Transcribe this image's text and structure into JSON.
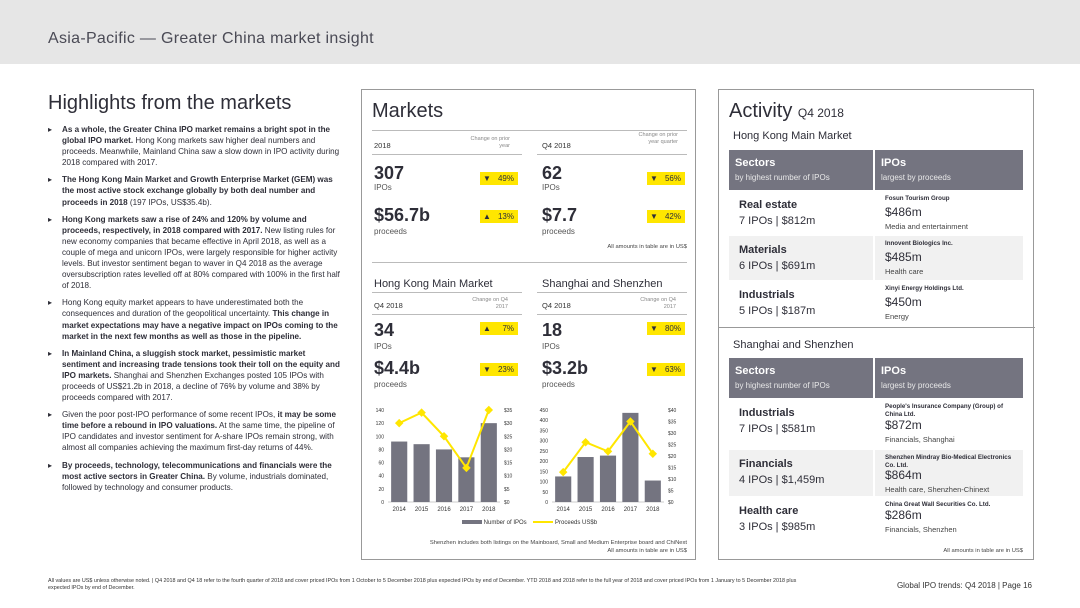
{
  "header": {
    "title": "Asia-Pacific — Greater China market insight"
  },
  "highlights": {
    "title": "Highlights from the markets",
    "bullets": [
      {
        "bold": "As a whole, the Greater China IPO market remains a bright spot in the global IPO market.",
        "text": " Hong Kong markets saw higher deal numbers and proceeds. Meanwhile, Mainland China saw a slow down in IPO activity during 2018 compared with 2017."
      },
      {
        "bold": "The Hong Kong Main Market and Growth Enterprise Market (GEM) was the most active stock exchange globally by both deal number and proceeds in 2018",
        "text": " (197 IPOs, US$35.4b)."
      },
      {
        "bold": "Hong Kong markets saw a rise of 24% and 120% by volume and proceeds, respectively, in 2018 compared with 2017.",
        "text": " New listing rules for new economy companies that became effective in April 2018, as well as a couple of mega and unicorn IPOs, were largely responsible for higher activity levels. But investor sentiment began to waver in Q4 2018 as the average oversubscription rates levelled off at 80% compared with 100% in the first half of 2018."
      },
      {
        "bold": "",
        "text": "Hong Kong equity market appears to have underestimated both the consequences and duration of the geopolitical uncertainty. ",
        "bold2": "This change in market expectations may have a negative impact on IPOs coming to the market in the next few months as well as those in the pipeline."
      },
      {
        "bold": "In Mainland China, a sluggish stock market, pessimistic market sentiment and increasing trade tensions took their toll on the equity and IPO markets.",
        "text": " Shanghai and Shenzhen Exchanges posted 105 IPOs with proceeds of US$21.2b in 2018, a decline of 76% by volume and 38% by proceeds compared with 2017."
      },
      {
        "bold": "",
        "text": "Given the poor post-IPO performance of some recent IPOs, ",
        "bold2": "it may be some time before a rebound in IPO valuations.",
        "text2": " At the same time, the pipeline of IPO candidates and investor sentiment for A-share IPOs remain strong, with almost all companies achieving the maximum first-day returns of 44%."
      },
      {
        "bold": "By proceeds, technology, telecommunications and financials were the most active sectors in Greater China.",
        "text": " By volume, industrials dominated, followed by technology and consumer products."
      }
    ]
  },
  "markets": {
    "title": "Markets",
    "change_label": "Change on prior year",
    "change_label_q": "Change on prior year quarter",
    "change_label_q2017": "Change on Q4 2017",
    "y2018": {
      "label": "2018",
      "ipos": "307",
      "ipos_label": "IPOs",
      "ipos_change": "49%",
      "proceeds": "$56.7b",
      "proceeds_label": "proceeds",
      "proceeds_change": "13%"
    },
    "q2018": {
      "label": "Q4 2018",
      "ipos": "62",
      "ipos_label": "IPOs",
      "ipos_change": "56%",
      "proceeds": "$7.7",
      "proceeds_label": "proceeds",
      "proceeds_change": "42%"
    },
    "amounts_note": "All amounts in table are in US$",
    "hk": {
      "title": "Hong Kong Main Market",
      "label": "Q4 2018",
      "ipos": "34",
      "ipos_label": "IPOs",
      "ipos_change": "7%",
      "proceeds": "$4.4b",
      "proceeds_label": "proceeds",
      "proceeds_change": "23%"
    },
    "ss": {
      "title": "Shanghai and Shenzhen",
      "label": "Q4 2018",
      "ipos": "18",
      "ipos_label": "IPOs",
      "ipos_change": "80%",
      "proceeds": "$3.2b",
      "proceeds_label": "proceeds",
      "proceeds_change": "63%"
    },
    "legend": {
      "bars": "Number of IPOs",
      "line": "Proceeds US$b"
    },
    "chart_note1": "Shenzhen includes both listings on the Mainboard, Small and Medium Enterprise board and ChiNext",
    "chart_note2": "All amounts in table are in US$"
  },
  "chart_data": [
    {
      "type": "bar",
      "title": "Hong Kong Main Market",
      "categories": [
        "2014",
        "2015",
        "2016",
        "2017",
        "2018"
      ],
      "series": [
        {
          "name": "Number of IPOs",
          "values": [
            92,
            88,
            80,
            68,
            120
          ]
        },
        {
          "name": "Proceeds US$b",
          "values": [
            30,
            34,
            25,
            13,
            35
          ]
        }
      ],
      "ylim": [
        0,
        140
      ],
      "y2lim": [
        0,
        35
      ],
      "yticks": [
        0,
        20,
        40,
        60,
        80,
        100,
        120,
        140
      ],
      "y2ticks": [
        "$0",
        "$5",
        "$10",
        "$15",
        "$20",
        "$25",
        "$30",
        "$35"
      ]
    },
    {
      "type": "bar",
      "title": "Shanghai and Shenzhen",
      "categories": [
        "2014",
        "2015",
        "2016",
        "2017",
        "2018"
      ],
      "series": [
        {
          "name": "Number of IPOs",
          "values": [
            125,
            220,
            227,
            436,
            105
          ]
        },
        {
          "name": "Proceeds US$b",
          "values": [
            13,
            26,
            22,
            35,
            21
          ]
        }
      ],
      "ylim": [
        0,
        450
      ],
      "y2lim": [
        0,
        40
      ],
      "yticks": [
        0,
        50,
        100,
        150,
        200,
        250,
        300,
        350,
        400,
        450
      ],
      "y2ticks": [
        "$0",
        "$5",
        "$10",
        "$15",
        "$20",
        "$25",
        "$30",
        "$35",
        "$40"
      ]
    }
  ],
  "activity": {
    "title": "Activity",
    "title_q": "Q4 2018",
    "hk_label": "Hong Kong Main Market",
    "ss_label": "Shanghai and Shenzhen",
    "sectors_title": "Sectors",
    "sectors_sub": "by highest number of IPOs",
    "ipos_title": "IPOs",
    "ipos_sub": "largest by proceeds",
    "hk_sectors": [
      {
        "name": "Real estate",
        "detail": "7 IPOs | $812m"
      },
      {
        "name": "Materials",
        "detail": "6 IPOs | $691m"
      },
      {
        "name": "Industrials",
        "detail": "5 IPOs | $187m"
      }
    ],
    "hk_ipos": [
      {
        "company": "Fosun Tourism Group",
        "amount": "$486m",
        "sector": "Media and entertainment"
      },
      {
        "company": "Innovent Biologics Inc.",
        "amount": "$485m",
        "sector": "Health care"
      },
      {
        "company": "Xinyi Energy Holdings Ltd.",
        "amount": "$450m",
        "sector": "Energy"
      }
    ],
    "ss_sectors": [
      {
        "name": "Industrials",
        "detail": "7 IPOs | $581m"
      },
      {
        "name": "Financials",
        "detail": "4 IPOs | $1,459m"
      },
      {
        "name": "Health care",
        "detail": "3 IPOs | $985m"
      }
    ],
    "ss_ipos": [
      {
        "company": "People's Insurance Company (Group) of China Ltd.",
        "amount": "$872m",
        "sector": "Financials, Shanghai"
      },
      {
        "company": "Shenzhen Mindray Bio-Medical Electronics Co. Ltd.",
        "amount": "$864m",
        "sector": "Health care, Shenzhen-Chinext"
      },
      {
        "company": "China Great Wall Securities Co. Ltd.",
        "amount": "$286m",
        "sector": "Financials, Shenzhen"
      }
    ],
    "note": "All amounts in table are in US$"
  },
  "footer": {
    "note": "All values are US$ unless otherwise noted. | Q4 2018 and Q4 18 refer to the fourth quarter of 2018 and cover priced IPOs from 1 October to 5 December 2018 plus expected IPOs by end of December. YTD 2018 and 2018 refer to the full year of 2018 and cover priced IPOs from 1 January to 5 December 2018 plus expected IPOs by end of December.",
    "page": "Global IPO trends: Q4 2018  |  Page 16"
  },
  "colors": {
    "accent": "#ffe600",
    "bar": "#747480",
    "header": "#e6e6e6"
  }
}
